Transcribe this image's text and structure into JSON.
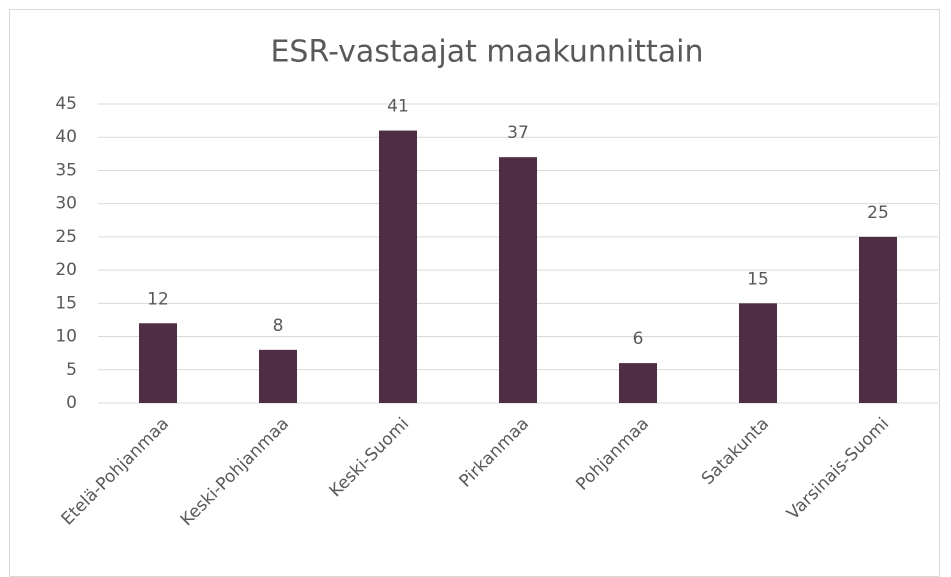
{
  "chart_data": {
    "type": "bar",
    "title": "ESR-vastaajat maakunnittain",
    "categories": [
      "Etelä-Pohjanmaa",
      "Keski-Pohjanmaa",
      "Keski-Suomi",
      "Pirkanmaa",
      "Pohjanmaa",
      "Satakunta",
      "Varsinais-Suomi"
    ],
    "values": [
      12,
      8,
      41,
      37,
      6,
      15,
      25
    ],
    "color": "#4f2d45",
    "ylim": [
      0,
      45
    ],
    "yticks": [
      0,
      5,
      10,
      15,
      20,
      25,
      30,
      35,
      40,
      45
    ],
    "grid": true,
    "data_labels": true
  }
}
